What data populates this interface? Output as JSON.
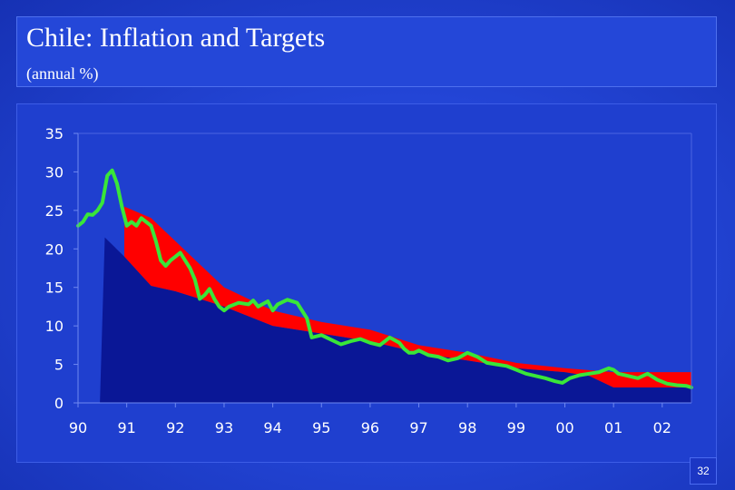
{
  "title": "Chile: Inflation and Targets",
  "subtitle": "(annual %)",
  "page_number": "32",
  "colors": {
    "inflation_line": "#39e639",
    "target_band": "#ff0000",
    "target_floor_area": "#0a1796",
    "plot_background": "#1f3fcf"
  },
  "chart_data": {
    "type": "line",
    "title": "Chile: Inflation and Targets",
    "subtitle": "(annual %)",
    "xlabel": "",
    "ylabel": "",
    "x_ticks": [
      "90",
      "91",
      "92",
      "93",
      "94",
      "95",
      "96",
      "97",
      "98",
      "99",
      "00",
      "01",
      "02"
    ],
    "y_ticks": [
      "0",
      "5",
      "10",
      "15",
      "20",
      "25",
      "30",
      "35"
    ],
    "xlim": [
      1990.0,
      2002.6
    ],
    "ylim": [
      0,
      35
    ],
    "grid": false,
    "legend": "none",
    "series": [
      {
        "kind": "area",
        "points": [
          [
            1990.45,
            0
          ],
          [
            1990.55,
            21.5
          ],
          [
            1990.95,
            19
          ],
          [
            1991.5,
            15.2
          ],
          [
            1992.0,
            14.5
          ],
          [
            1992.5,
            13.5
          ],
          [
            1993.0,
            12.5
          ],
          [
            1994.0,
            10
          ],
          [
            1995.0,
            9
          ],
          [
            1996.0,
            8
          ],
          [
            1997.0,
            6.5
          ],
          [
            1998.0,
            5.5
          ],
          [
            1999.0,
            4.5
          ],
          [
            2000.0,
            4
          ],
          [
            2000.5,
            3.5
          ],
          [
            2001.0,
            2
          ],
          [
            2002.6,
            2
          ],
          [
            2002.6,
            0
          ]
        ]
      },
      {
        "kind": "band",
        "upper": [
          [
            1990.95,
            25.5
          ],
          [
            1991.5,
            24
          ],
          [
            1992.0,
            21
          ],
          [
            1992.5,
            18
          ],
          [
            1993.0,
            15
          ],
          [
            1994.0,
            12
          ],
          [
            1995.0,
            10.5
          ],
          [
            1996.0,
            9.5
          ],
          [
            1997.0,
            7.5
          ],
          [
            1998.0,
            6.5
          ],
          [
            1999.0,
            5.2
          ],
          [
            2000.0,
            4.5
          ],
          [
            2001.0,
            4
          ],
          [
            2002.6,
            4
          ]
        ],
        "lower": [
          [
            1990.95,
            19
          ],
          [
            1991.5,
            15.2
          ],
          [
            1992.0,
            14.5
          ],
          [
            1992.5,
            13.5
          ],
          [
            1993.0,
            12.5
          ],
          [
            1994.0,
            10
          ],
          [
            1995.0,
            9
          ],
          [
            1996.0,
            8
          ],
          [
            1997.0,
            6.5
          ],
          [
            1998.0,
            5.5
          ],
          [
            1999.0,
            4.5
          ],
          [
            2000.0,
            4
          ],
          [
            2000.5,
            3.5
          ],
          [
            2001.0,
            2
          ],
          [
            2002.6,
            2
          ]
        ]
      },
      {
        "kind": "line",
        "points": [
          [
            1990.0,
            23.0
          ],
          [
            1990.1,
            23.5
          ],
          [
            1990.2,
            24.5
          ],
          [
            1990.3,
            24.4
          ],
          [
            1990.4,
            25.0
          ],
          [
            1990.5,
            26.0
          ],
          [
            1990.6,
            29.5
          ],
          [
            1990.7,
            30.2
          ],
          [
            1990.8,
            28.5
          ],
          [
            1990.9,
            25.5
          ],
          [
            1991.0,
            23.0
          ],
          [
            1991.1,
            23.5
          ],
          [
            1991.2,
            23.0
          ],
          [
            1991.3,
            24.0
          ],
          [
            1991.4,
            23.5
          ],
          [
            1991.5,
            23.0
          ],
          [
            1991.6,
            21.0
          ],
          [
            1991.7,
            18.5
          ],
          [
            1991.8,
            17.8
          ],
          [
            1991.9,
            18.5
          ],
          [
            1992.0,
            19.0
          ],
          [
            1992.1,
            19.5
          ],
          [
            1992.2,
            18.5
          ],
          [
            1992.3,
            17.5
          ],
          [
            1992.4,
            16.0
          ],
          [
            1992.5,
            13.5
          ],
          [
            1992.6,
            14.0
          ],
          [
            1992.7,
            14.8
          ],
          [
            1992.8,
            13.5
          ],
          [
            1992.9,
            12.5
          ],
          [
            1993.0,
            12.0
          ],
          [
            1993.1,
            12.5
          ],
          [
            1993.3,
            13.0
          ],
          [
            1993.5,
            12.8
          ],
          [
            1993.6,
            13.3
          ],
          [
            1993.7,
            12.5
          ],
          [
            1993.9,
            13.2
          ],
          [
            1994.0,
            12.0
          ],
          [
            1994.1,
            12.8
          ],
          [
            1994.3,
            13.4
          ],
          [
            1994.5,
            13.0
          ],
          [
            1994.6,
            12.0
          ],
          [
            1994.7,
            11.0
          ],
          [
            1994.8,
            8.5
          ],
          [
            1995.0,
            8.8
          ],
          [
            1995.2,
            8.2
          ],
          [
            1995.4,
            7.6
          ],
          [
            1995.6,
            8.0
          ],
          [
            1995.8,
            8.3
          ],
          [
            1996.0,
            7.8
          ],
          [
            1996.2,
            7.5
          ],
          [
            1996.4,
            8.5
          ],
          [
            1996.6,
            7.8
          ],
          [
            1996.7,
            7.0
          ],
          [
            1996.8,
            6.5
          ],
          [
            1996.9,
            6.5
          ],
          [
            1997.0,
            6.8
          ],
          [
            1997.2,
            6.2
          ],
          [
            1997.4,
            6.0
          ],
          [
            1997.6,
            5.5
          ],
          [
            1997.8,
            5.8
          ],
          [
            1998.0,
            6.5
          ],
          [
            1998.2,
            6.0
          ],
          [
            1998.4,
            5.2
          ],
          [
            1998.6,
            5.0
          ],
          [
            1998.8,
            4.8
          ],
          [
            1999.0,
            4.3
          ],
          [
            1999.2,
            3.8
          ],
          [
            1999.4,
            3.5
          ],
          [
            1999.6,
            3.2
          ],
          [
            1999.8,
            2.8
          ],
          [
            1999.95,
            2.6
          ],
          [
            2000.1,
            3.2
          ],
          [
            2000.3,
            3.6
          ],
          [
            2000.5,
            3.8
          ],
          [
            2000.7,
            4.0
          ],
          [
            2000.9,
            4.5
          ],
          [
            2001.0,
            4.3
          ],
          [
            2001.1,
            3.8
          ],
          [
            2001.3,
            3.5
          ],
          [
            2001.5,
            3.2
          ],
          [
            2001.7,
            3.8
          ],
          [
            2001.9,
            3.0
          ],
          [
            2002.1,
            2.5
          ],
          [
            2002.3,
            2.3
          ],
          [
            2002.5,
            2.2
          ],
          [
            2002.6,
            2.0
          ]
        ]
      }
    ]
  }
}
